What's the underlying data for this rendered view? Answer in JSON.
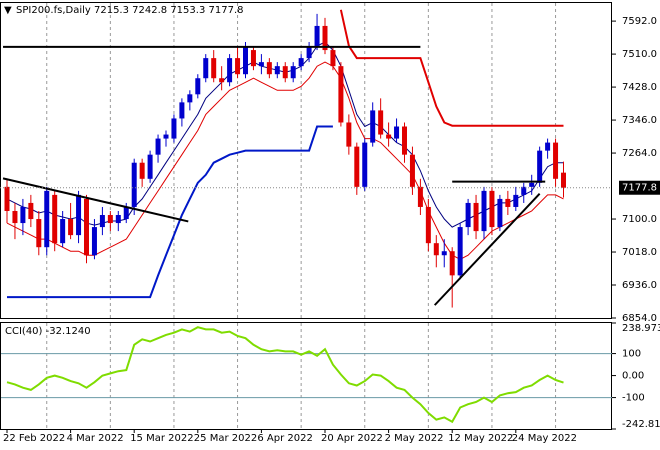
{
  "chart_data": {
    "type": "candlestick",
    "title": "SPI200.fs,Daily  7215.3 7242.8 7153.3 7177.8",
    "categories": [
      "22 Feb 2022",
      null,
      null,
      null,
      null,
      null,
      null,
      null,
      "4 Mar 2022",
      null,
      null,
      null,
      null,
      null,
      null,
      null,
      "15 Mar 2022",
      null,
      null,
      null,
      null,
      null,
      null,
      null,
      "25 Mar 2022",
      null,
      null,
      null,
      null,
      null,
      null,
      null,
      "6 Apr 2022",
      null,
      null,
      null,
      null,
      null,
      null,
      null,
      "20 Apr 2022",
      null,
      null,
      null,
      null,
      null,
      null,
      null,
      "2 May 2022",
      null,
      null,
      null,
      null,
      null,
      null,
      null,
      "12 May 2022",
      null,
      null,
      null,
      null,
      null,
      null,
      null,
      "24 May 2022",
      null,
      null,
      null,
      null,
      null,
      null
    ],
    "open": [
      7180,
      7120,
      7090,
      7140,
      7100,
      7030,
      7160,
      7040,
      7100,
      7060,
      7150,
      7010,
      7080,
      7110,
      7090,
      7100,
      7130,
      7240,
      7200,
      7260,
      7300,
      7300,
      7350,
      7390,
      7410,
      7450,
      7500,
      7450,
      7440,
      7500,
      7460,
      7520,
      7480,
      7490,
      7460,
      7480,
      7450,
      7480,
      7500,
      7530,
      7580,
      7520,
      7480,
      7340,
      7280,
      7180,
      7290,
      7370,
      7310,
      7300,
      7330,
      7260,
      7180,
      7130,
      7040,
      7010,
      7020,
      6960,
      7080,
      7140,
      7070,
      7170,
      7080,
      7150,
      7130,
      7160,
      7180,
      7190,
      7270,
      7290,
      7215.3
    ],
    "high": [
      7200,
      7140,
      7150,
      7160,
      7120,
      7180,
      7170,
      7120,
      7140,
      7170,
      7160,
      7100,
      7130,
      7120,
      7120,
      7140,
      7250,
      7250,
      7270,
      7310,
      7320,
      7360,
      7400,
      7420,
      7460,
      7510,
      7520,
      7480,
      7510,
      7530,
      7540,
      7530,
      7510,
      7500,
      7490,
      7490,
      7490,
      7510,
      7540,
      7610,
      7600,
      7530,
      7490,
      7360,
      7290,
      7300,
      7390,
      7400,
      7340,
      7350,
      7340,
      7280,
      7200,
      7150,
      7060,
      7050,
      7030,
      7090,
      7150,
      7160,
      7180,
      7180,
      7160,
      7170,
      7180,
      7190,
      7210,
      7280,
      7300,
      7300,
      7242.8
    ],
    "low": [
      7090,
      7050,
      7060,
      7080,
      7010,
      7010,
      7020,
      7030,
      7050,
      7040,
      6990,
      7000,
      7060,
      7070,
      7070,
      7090,
      7110,
      7180,
      7190,
      7240,
      7280,
      7290,
      7330,
      7370,
      7400,
      7440,
      7440,
      7420,
      7430,
      7450,
      7450,
      7470,
      7460,
      7450,
      7450,
      7440,
      7440,
      7470,
      7490,
      7520,
      7510,
      7470,
      7330,
      7260,
      7160,
      7170,
      7280,
      7300,
      7280,
      7290,
      7240,
      7160,
      7110,
      7020,
      6980,
      6980,
      6880,
      6950,
      7060,
      7050,
      7050,
      7060,
      7070,
      7110,
      7120,
      7140,
      7160,
      7180,
      7250,
      7180,
      7153.3
    ],
    "close": [
      7120,
      7090,
      7130,
      7100,
      7030,
      7170,
      7040,
      7100,
      7060,
      7160,
      7010,
      7080,
      7110,
      7090,
      7110,
      7130,
      7240,
      7200,
      7260,
      7300,
      7310,
      7350,
      7390,
      7410,
      7450,
      7500,
      7450,
      7440,
      7500,
      7460,
      7530,
      7480,
      7490,
      7460,
      7480,
      7450,
      7480,
      7500,
      7530,
      7580,
      7520,
      7480,
      7340,
      7280,
      7180,
      7290,
      7370,
      7310,
      7300,
      7330,
      7260,
      7180,
      7130,
      7040,
      7010,
      7020,
      6960,
      7080,
      7140,
      7070,
      7170,
      7080,
      7150,
      7130,
      7160,
      7180,
      7190,
      7270,
      7290,
      7200,
      7177.8
    ],
    "up_color": "#0000cd",
    "down_color": "#e00000",
    "ylim": [
      6854,
      7637
    ],
    "yticks": [
      {
        "value": 7592,
        "label": "7592.0"
      },
      {
        "value": 7510,
        "label": "7510.0"
      },
      {
        "value": 7428,
        "label": "7428.0"
      },
      {
        "value": 7346,
        "label": "7346.0"
      },
      {
        "value": 7264,
        "label": "7264.0"
      },
      {
        "value": 7100,
        "label": "7100.0"
      },
      {
        "value": 7018,
        "label": "7018.0"
      },
      {
        "value": 6936,
        "label": "6936.0"
      },
      {
        "value": 6854,
        "label": "6854.0"
      }
    ],
    "overlays": [
      {
        "color": "#000080",
        "width": 1,
        "values": [
          7150,
          7140,
          7130,
          7125,
          7115,
          7120,
          7110,
          7105,
          7100,
          7105,
          7090,
          7085,
          7090,
          7095,
          7095,
          7100,
          7130,
          7150,
          7180,
          7210,
          7240,
          7270,
          7300,
          7330,
          7360,
          7400,
          7420,
          7440,
          7460,
          7470,
          7480,
          7490,
          7480,
          7475,
          7470,
          7465,
          7470,
          7480,
          7500,
          7530,
          7540,
          7520,
          7480,
          7420,
          7360,
          7330,
          7340,
          7330,
          7310,
          7290,
          7280,
          7260,
          7220,
          7170,
          7130,
          7100,
          7080,
          7090,
          7100,
          7110,
          7120,
          7130,
          7140,
          7140,
          7150,
          7160,
          7170,
          7200,
          7230,
          7240,
          7240
        ]
      },
      {
        "color": "#e00000",
        "width": 1,
        "values": [
          7090,
          7080,
          7070,
          7060,
          7050,
          7050,
          7040,
          7030,
          7020,
          7020,
          7010,
          7010,
          7020,
          7030,
          7040,
          7050,
          7080,
          7110,
          7140,
          7170,
          7200,
          7230,
          7260,
          7290,
          7320,
          7360,
          7380,
          7400,
          7420,
          7430,
          7440,
          7450,
          7440,
          7430,
          7420,
          7420,
          7420,
          7430,
          7450,
          7480,
          7490,
          7480,
          7450,
          7400,
          7340,
          7300,
          7300,
          7290,
          7270,
          7250,
          7230,
          7210,
          7170,
          7120,
          7080,
          7040,
          7010,
          7000,
          7010,
          7030,
          7050,
          7070,
          7080,
          7090,
          7100,
          7110,
          7120,
          7140,
          7160,
          7160,
          7150
        ]
      },
      {
        "color": "#0018c8",
        "width": 2,
        "values": [
          6906,
          6906,
          6906,
          6906,
          6906,
          6906,
          6906,
          6906,
          6906,
          6906,
          6906,
          6906,
          6906,
          6906,
          6906,
          6906,
          6906,
          6906,
          6906,
          6960,
          7010,
          7060,
          7110,
          7150,
          7190,
          7210,
          7240,
          7250,
          7260,
          7265,
          7270,
          7270,
          7270,
          7270,
          7270,
          7270,
          7270,
          7270,
          7270,
          7330,
          7330,
          7330,
          null,
          null,
          null,
          null,
          null,
          null,
          null,
          null,
          null,
          null,
          null,
          null,
          null,
          null,
          null,
          null,
          null,
          null,
          null,
          null,
          null,
          null,
          null,
          null,
          null,
          null,
          null,
          null,
          null
        ]
      },
      {
        "color": "#e00000",
        "width": 2,
        "values": [
          null,
          null,
          null,
          null,
          null,
          null,
          null,
          null,
          null,
          null,
          null,
          null,
          null,
          null,
          null,
          null,
          null,
          null,
          null,
          null,
          null,
          null,
          null,
          null,
          null,
          null,
          null,
          null,
          null,
          null,
          null,
          null,
          null,
          null,
          null,
          null,
          null,
          null,
          null,
          null,
          null,
          null,
          7620,
          7530,
          7500,
          7500,
          7500,
          7500,
          7500,
          7500,
          7500,
          7500,
          7500,
          7440,
          7380,
          7340,
          7332,
          7332,
          7332,
          7332,
          7332,
          7332,
          7332,
          7332,
          7332,
          7332,
          7332,
          7332,
          7332,
          7332,
          7332
        ]
      }
    ],
    "trend_lines": [
      {
        "x": [
          -0.5,
          52
        ],
        "y": [
          7528,
          7528
        ]
      },
      {
        "x": [
          -0.5,
          22.8
        ],
        "y": [
          7201,
          7094
        ]
      },
      {
        "x": [
          56,
          67.7
        ],
        "y": [
          7193,
          7193
        ]
      },
      {
        "x": [
          53.8,
          67
        ],
        "y": [
          6886,
          7163
        ]
      }
    ],
    "indicator": {
      "title": "CCI(40) -32.1240",
      "color": "#7fdc00",
      "values": [
        -30,
        -40,
        -55,
        -65,
        -40,
        -10,
        0,
        -10,
        -25,
        -35,
        -55,
        -30,
        0,
        10,
        20,
        25,
        140,
        165,
        155,
        170,
        185,
        195,
        210,
        200,
        220,
        210,
        210,
        195,
        200,
        180,
        170,
        140,
        120,
        110,
        115,
        110,
        110,
        95,
        110,
        90,
        120,
        50,
        5,
        -35,
        -45,
        -25,
        5,
        0,
        -25,
        -55,
        -65,
        -100,
        -130,
        -170,
        -200,
        -190,
        -210,
        -145,
        -130,
        -120,
        -100,
        -120,
        -90,
        -80,
        -75,
        -55,
        -45,
        -20,
        0,
        -20,
        -32.124
      ],
      "ylim": [
        -242.819,
        238.9731
      ],
      "yticks": [
        238.9731,
        100,
        {
          "value": 0,
          "label": "0.00"
        },
        -100,
        -242.819
      ],
      "levels": [
        100,
        -100
      ]
    }
  }
}
